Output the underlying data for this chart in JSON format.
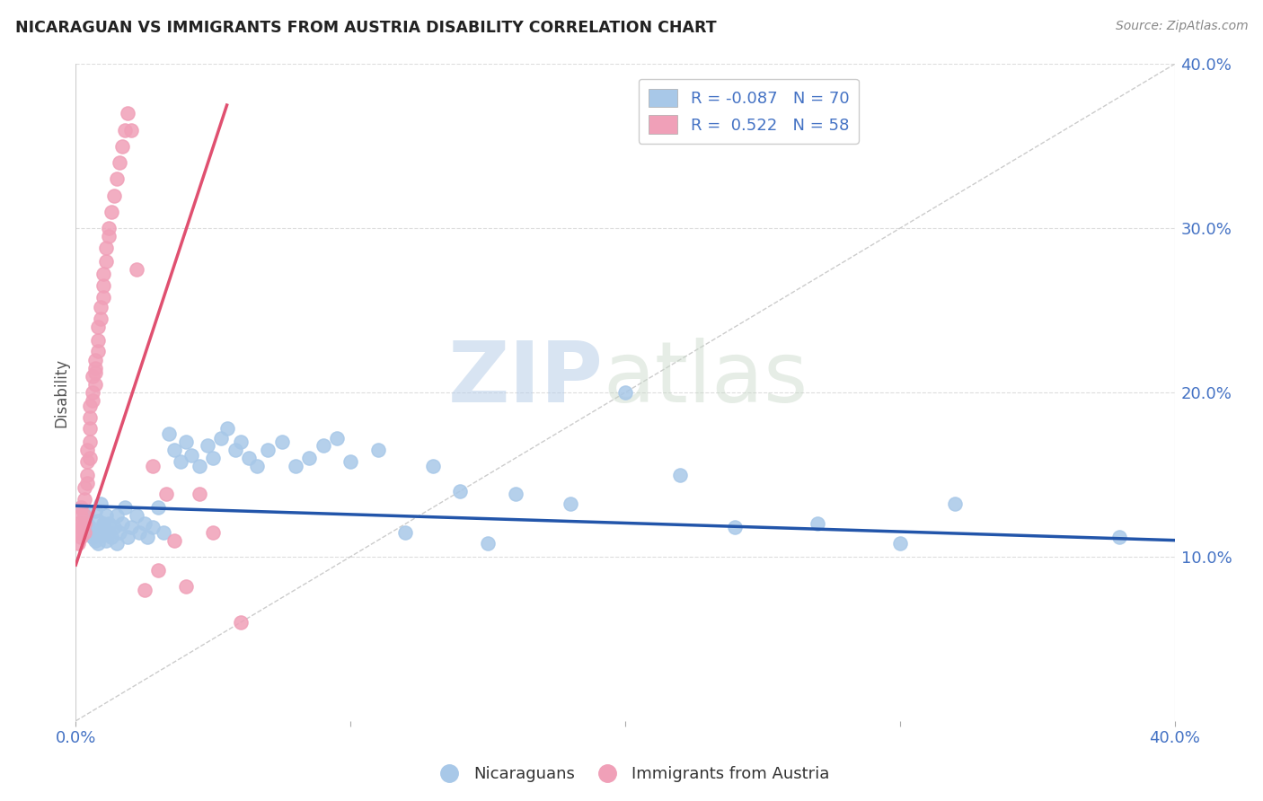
{
  "title": "NICARAGUAN VS IMMIGRANTS FROM AUSTRIA DISABILITY CORRELATION CHART",
  "source": "Source: ZipAtlas.com",
  "ylabel": "Disability",
  "xlim": [
    0.0,
    0.4
  ],
  "ylim": [
    0.0,
    0.4
  ],
  "xticks": [
    0.0,
    0.1,
    0.2,
    0.3,
    0.4
  ],
  "yticks": [
    0.1,
    0.2,
    0.3,
    0.4
  ],
  "blue_R": -0.087,
  "blue_N": 70,
  "pink_R": 0.522,
  "pink_N": 58,
  "blue_color": "#A8C8E8",
  "pink_color": "#F0A0B8",
  "blue_line_color": "#2255AA",
  "pink_line_color": "#E05070",
  "ref_line_color": "#CCCCCC",
  "watermark_zip": "ZIP",
  "watermark_atlas": "atlas",
  "legend_label_blue": "Nicaraguans",
  "legend_label_pink": "Immigrants from Austria",
  "blue_scatter_x": [
    0.002,
    0.003,
    0.004,
    0.005,
    0.005,
    0.006,
    0.007,
    0.007,
    0.008,
    0.008,
    0.009,
    0.009,
    0.01,
    0.01,
    0.01,
    0.011,
    0.011,
    0.012,
    0.012,
    0.013,
    0.014,
    0.015,
    0.015,
    0.016,
    0.017,
    0.018,
    0.019,
    0.02,
    0.022,
    0.023,
    0.025,
    0.026,
    0.028,
    0.03,
    0.032,
    0.034,
    0.036,
    0.038,
    0.04,
    0.042,
    0.045,
    0.048,
    0.05,
    0.053,
    0.055,
    0.058,
    0.06,
    0.063,
    0.066,
    0.07,
    0.075,
    0.08,
    0.085,
    0.09,
    0.095,
    0.1,
    0.11,
    0.12,
    0.13,
    0.14,
    0.15,
    0.16,
    0.18,
    0.2,
    0.22,
    0.24,
    0.27,
    0.3,
    0.32,
    0.38
  ],
  "blue_scatter_y": [
    0.13,
    0.125,
    0.12,
    0.115,
    0.118,
    0.112,
    0.11,
    0.128,
    0.122,
    0.108,
    0.115,
    0.132,
    0.12,
    0.113,
    0.118,
    0.125,
    0.11,
    0.115,
    0.12,
    0.112,
    0.118,
    0.125,
    0.108,
    0.115,
    0.12,
    0.13,
    0.112,
    0.118,
    0.125,
    0.115,
    0.12,
    0.112,
    0.118,
    0.13,
    0.115,
    0.175,
    0.165,
    0.158,
    0.17,
    0.162,
    0.155,
    0.168,
    0.16,
    0.172,
    0.178,
    0.165,
    0.17,
    0.16,
    0.155,
    0.165,
    0.17,
    0.155,
    0.16,
    0.168,
    0.172,
    0.158,
    0.165,
    0.115,
    0.155,
    0.14,
    0.108,
    0.138,
    0.132,
    0.2,
    0.15,
    0.118,
    0.12,
    0.108,
    0.132,
    0.112
  ],
  "pink_scatter_x": [
    0.001,
    0.001,
    0.001,
    0.002,
    0.002,
    0.002,
    0.002,
    0.003,
    0.003,
    0.003,
    0.003,
    0.003,
    0.004,
    0.004,
    0.004,
    0.004,
    0.005,
    0.005,
    0.005,
    0.005,
    0.005,
    0.006,
    0.006,
    0.006,
    0.007,
    0.007,
    0.007,
    0.007,
    0.008,
    0.008,
    0.008,
    0.009,
    0.009,
    0.01,
    0.01,
    0.01,
    0.011,
    0.011,
    0.012,
    0.012,
    0.013,
    0.014,
    0.015,
    0.016,
    0.017,
    0.018,
    0.019,
    0.02,
    0.022,
    0.025,
    0.028,
    0.03,
    0.033,
    0.036,
    0.04,
    0.045,
    0.05,
    0.06
  ],
  "pink_scatter_y": [
    0.108,
    0.115,
    0.12,
    0.118,
    0.125,
    0.112,
    0.13,
    0.12,
    0.115,
    0.125,
    0.135,
    0.142,
    0.15,
    0.145,
    0.158,
    0.165,
    0.17,
    0.178,
    0.16,
    0.185,
    0.192,
    0.2,
    0.195,
    0.21,
    0.205,
    0.215,
    0.22,
    0.212,
    0.225,
    0.232,
    0.24,
    0.245,
    0.252,
    0.258,
    0.265,
    0.272,
    0.28,
    0.288,
    0.295,
    0.3,
    0.31,
    0.32,
    0.33,
    0.34,
    0.35,
    0.36,
    0.37,
    0.36,
    0.275,
    0.08,
    0.155,
    0.092,
    0.138,
    0.11,
    0.082,
    0.138,
    0.115,
    0.06
  ],
  "blue_trend_x": [
    0.0,
    0.4
  ],
  "blue_trend_y": [
    0.131,
    0.11
  ],
  "pink_trend_x": [
    0.0,
    0.055
  ],
  "pink_trend_y": [
    0.095,
    0.375
  ]
}
